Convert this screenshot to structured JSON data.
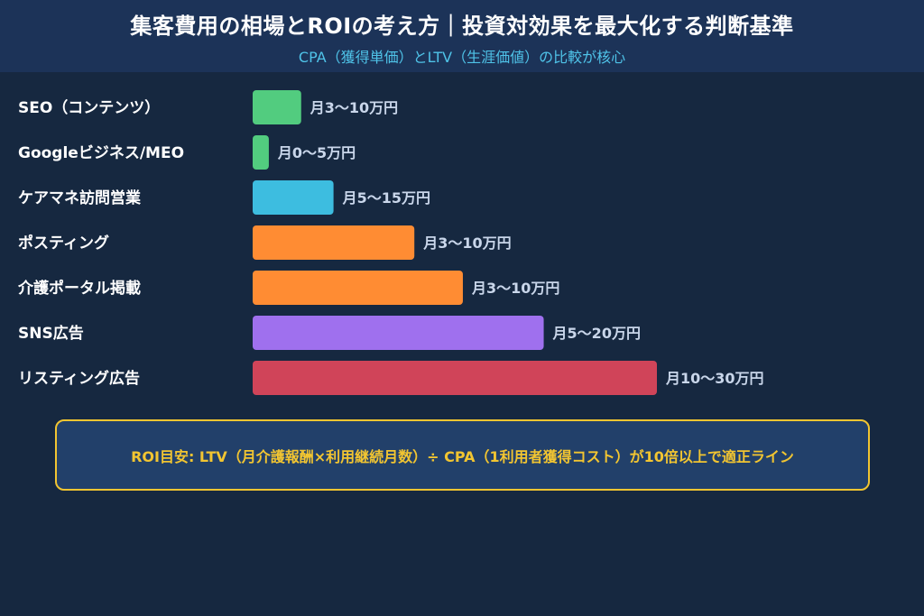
{
  "header": {
    "title": "集客費用の相場とROIの考え方｜投資対効果を最大化する判断基準",
    "subtitle": "CPA（獲得単価）とLTV（生涯価値）の比較が核心"
  },
  "chart_data": {
    "type": "bar",
    "orientation": "horizontal",
    "title": "集客費用の相場とROIの考え方｜投資対効果を最大化する判断基準",
    "subtitle": "CPA（獲得単価）とLTV（生涯価値）の比較が核心",
    "categories": [
      "SEO（コンテンツ）",
      "Googleビジネス/MEO",
      "ケアマネ訪問営業",
      "ポスティング",
      "介護ポータル掲載",
      "SNS広告",
      "リスティング広告"
    ],
    "values": [
      3,
      1,
      5,
      10,
      13,
      18,
      25
    ],
    "value_labels": [
      "月3〜10万円",
      "月0〜5万円",
      "月5〜15万円",
      "月3〜10万円",
      "月3〜10万円",
      "月5〜20万円",
      "月10〜30万円"
    ],
    "colors": [
      "#52cc7f",
      "#52cc7f",
      "#3dbde0",
      "#ff8c33",
      "#ff8c33",
      "#9f70ee",
      "#d04459"
    ],
    "xlim": [
      0,
      25
    ],
    "grid": false,
    "legend": "none",
    "xlabel": "",
    "ylabel": ""
  },
  "note": {
    "text": "ROI目安: LTV（月介護報酬×利用継続月数）÷ CPA（1利用者獲得コスト）が10倍以上で適正ライン"
  },
  "colors": {
    "background": "#162840",
    "header_background": "#1c3358",
    "subtitle": "#4fc3e8",
    "note_border": "#f2c531",
    "note_text": "#f2c531"
  }
}
